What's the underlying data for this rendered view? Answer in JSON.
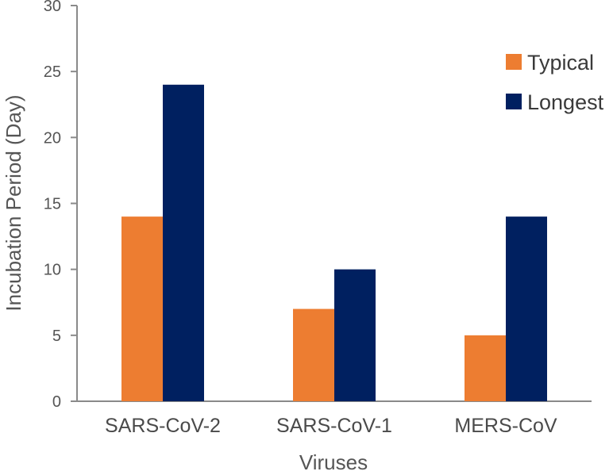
{
  "chart_data": {
    "type": "bar",
    "categories": [
      "SARS-CoV-2",
      "SARS-CoV-1",
      "MERS-CoV"
    ],
    "series": [
      {
        "name": "Typical",
        "values": [
          14,
          7,
          5
        ],
        "color": "#ED7D31"
      },
      {
        "name": "Longest",
        "values": [
          24,
          10,
          14
        ],
        "color": "#002060"
      }
    ],
    "xlabel": "Viruses",
    "ylabel": "Incubation Period (Day)",
    "ylim": [
      0,
      30
    ],
    "yticks": [
      0,
      5,
      10,
      15,
      20,
      25,
      30
    ],
    "grid": false,
    "legend_position": "top-right"
  }
}
